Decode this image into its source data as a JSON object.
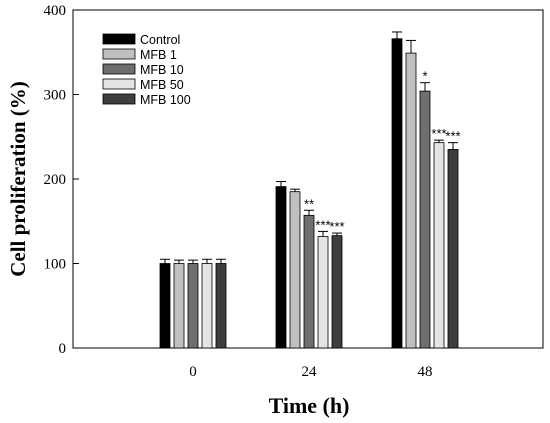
{
  "chart_data": {
    "type": "bar",
    "xlabel": "Time (h)",
    "ylabel": "Cell proliferation (%)",
    "ylim": [
      0,
      400
    ],
    "yticks": [
      "0",
      "100",
      "200",
      "300",
      "400"
    ],
    "categories": [
      "0",
      "24",
      "48"
    ],
    "legend_position": "top-left",
    "grid": false,
    "series": [
      {
        "name": "Control",
        "color": "#000000",
        "values": [
          100,
          191,
          366
        ],
        "errors": [
          5,
          6,
          8
        ],
        "significance": [
          "",
          "",
          ""
        ]
      },
      {
        "name": "MFB 1",
        "color": "#c0c0c0",
        "values": [
          100,
          185,
          349
        ],
        "errors": [
          4,
          3,
          15
        ],
        "significance": [
          "",
          "",
          ""
        ]
      },
      {
        "name": "MFB 10",
        "color": "#6e6e6e",
        "values": [
          100,
          157,
          304
        ],
        "errors": [
          4,
          6,
          10
        ],
        "significance": [
          "",
          "**",
          "*"
        ]
      },
      {
        "name": "MFB 50",
        "color": "#e4e4e4",
        "values": [
          100,
          132,
          243
        ],
        "errors": [
          5,
          6,
          3
        ],
        "significance": [
          "",
          "***",
          "***"
        ]
      },
      {
        "name": "MFB 100",
        "color": "#3e3e3e",
        "values": [
          100,
          133,
          235
        ],
        "errors": [
          5,
          3,
          8
        ],
        "significance": [
          "",
          "***",
          "***"
        ]
      }
    ]
  }
}
